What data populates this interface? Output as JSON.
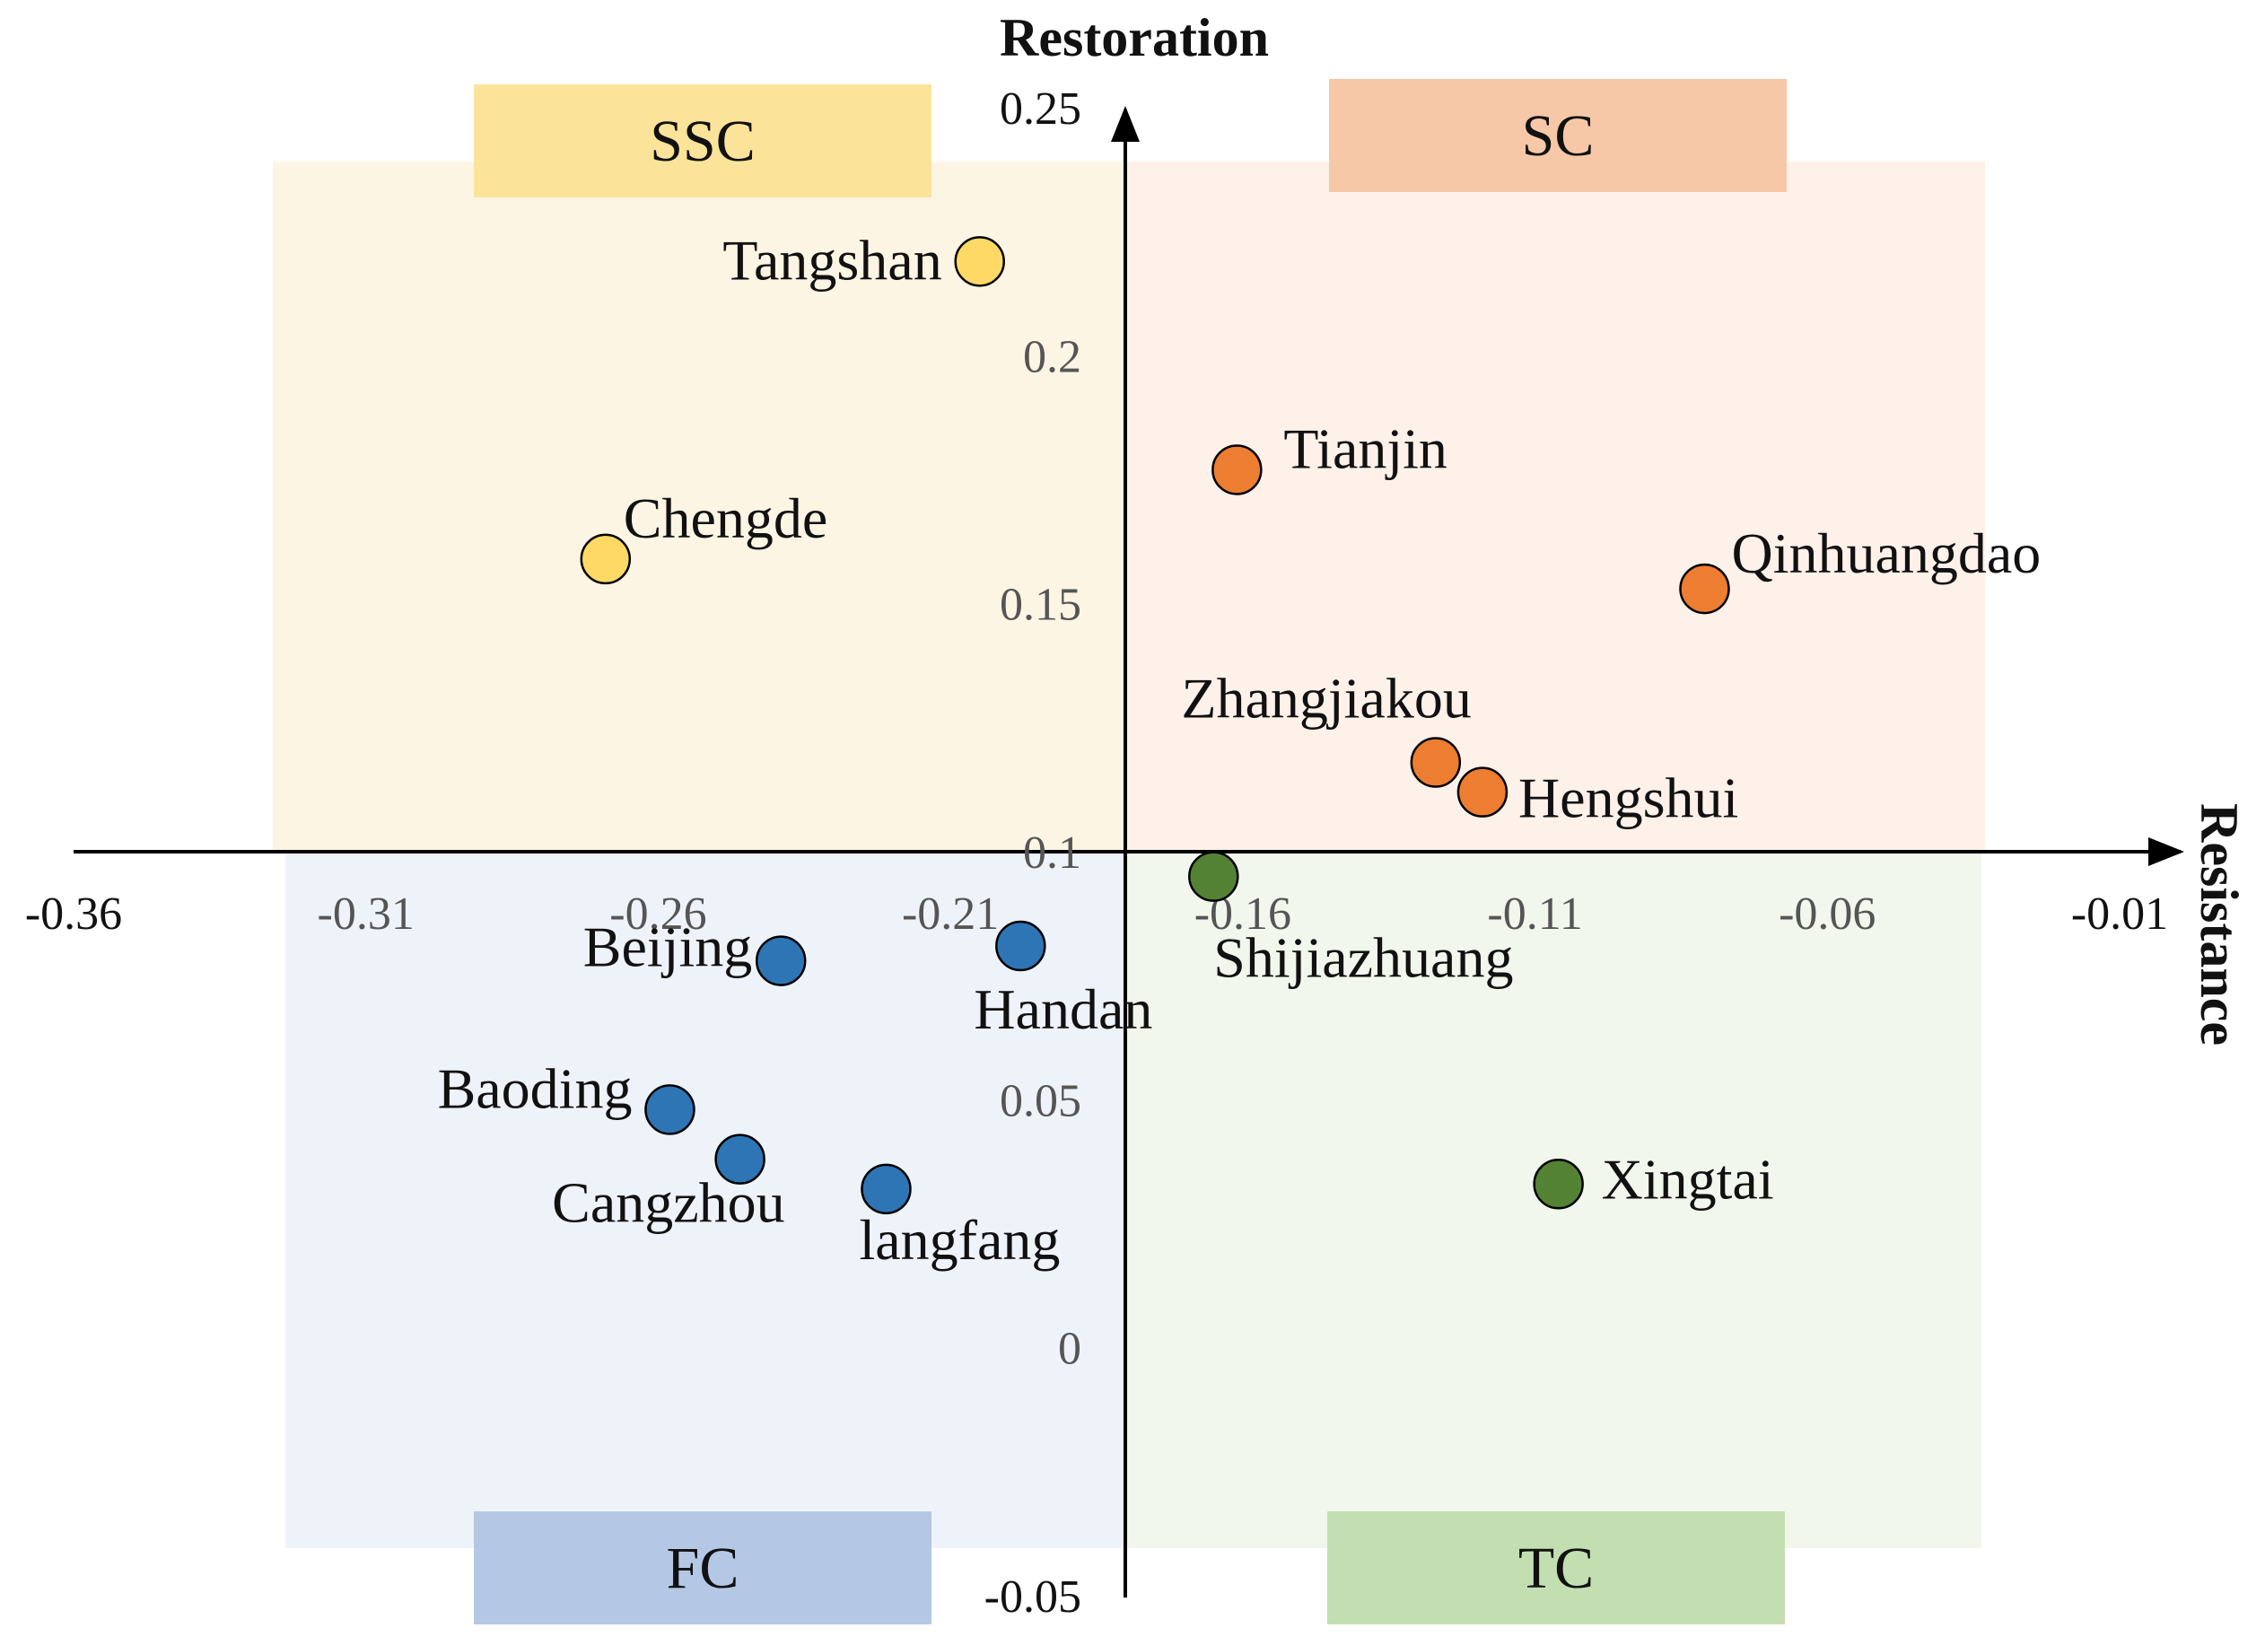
{
  "chart_data": {
    "type": "scatter",
    "title": "",
    "xlabel": "Resistance",
    "ylabel": "Restoration",
    "xlim": [
      -0.36,
      -0.01
    ],
    "ylim": [
      -0.05,
      0.25
    ],
    "x_ticks": [
      "-0.36",
      "-0.31",
      "-0.26",
      "-0.21",
      "-0.16",
      "-0.11",
      "-0.06",
      "-0.01"
    ],
    "y_ticks": [
      "0.25",
      "0.2",
      "0.15",
      "0.1",
      "0.05",
      "0",
      "-0.05"
    ],
    "quadrants": [
      {
        "name": "SSC",
        "position": "top-left",
        "fill": "#fdf5e4",
        "label_fill": "#fbe49a"
      },
      {
        "name": "SC",
        "position": "top-right",
        "fill": "#fdf1ea",
        "label_fill": "#f6c8a8"
      },
      {
        "name": "FC",
        "position": "bottom-left",
        "fill": "#eef3fa",
        "label_fill": "#b4c8e6"
      },
      {
        "name": "TC",
        "position": "bottom-right",
        "fill": "#f1f7ec",
        "label_fill": "#c3dfb2"
      }
    ],
    "series": [
      {
        "name": "SSC",
        "color": "#ffd966",
        "points": [
          {
            "label": "Tangshan",
            "x": -0.205,
            "y": 0.219
          },
          {
            "label": "Chengde",
            "x": -0.269,
            "y": 0.159
          }
        ]
      },
      {
        "name": "SC",
        "color": "#ed7d31",
        "points": [
          {
            "label": "Tianjin",
            "x": -0.161,
            "y": 0.177
          },
          {
            "label": "Qinhuangdao",
            "x": -0.081,
            "y": 0.153
          },
          {
            "label": "Zhangjiakou",
            "x": -0.127,
            "y": 0.118
          },
          {
            "label": "Hengshui",
            "x": -0.119,
            "y": 0.112
          }
        ]
      },
      {
        "name": "FC",
        "color": "#2e75b6",
        "points": [
          {
            "label": "Beijing",
            "x": -0.239,
            "y": 0.078
          },
          {
            "label": "Handan",
            "x": -0.198,
            "y": 0.081
          },
          {
            "label": "Baoding",
            "x": -0.258,
            "y": 0.048
          },
          {
            "label": "Cangzhou",
            "x": -0.246,
            "y": 0.038
          },
          {
            "label": "langfang",
            "x": -0.221,
            "y": 0.032
          }
        ]
      },
      {
        "name": "TC",
        "color": "#548235",
        "points": [
          {
            "label": "Shijiazhuang",
            "x": -0.165,
            "y": 0.095
          },
          {
            "label": "Xingtai",
            "x": -0.106,
            "y": 0.033
          }
        ]
      }
    ]
  }
}
